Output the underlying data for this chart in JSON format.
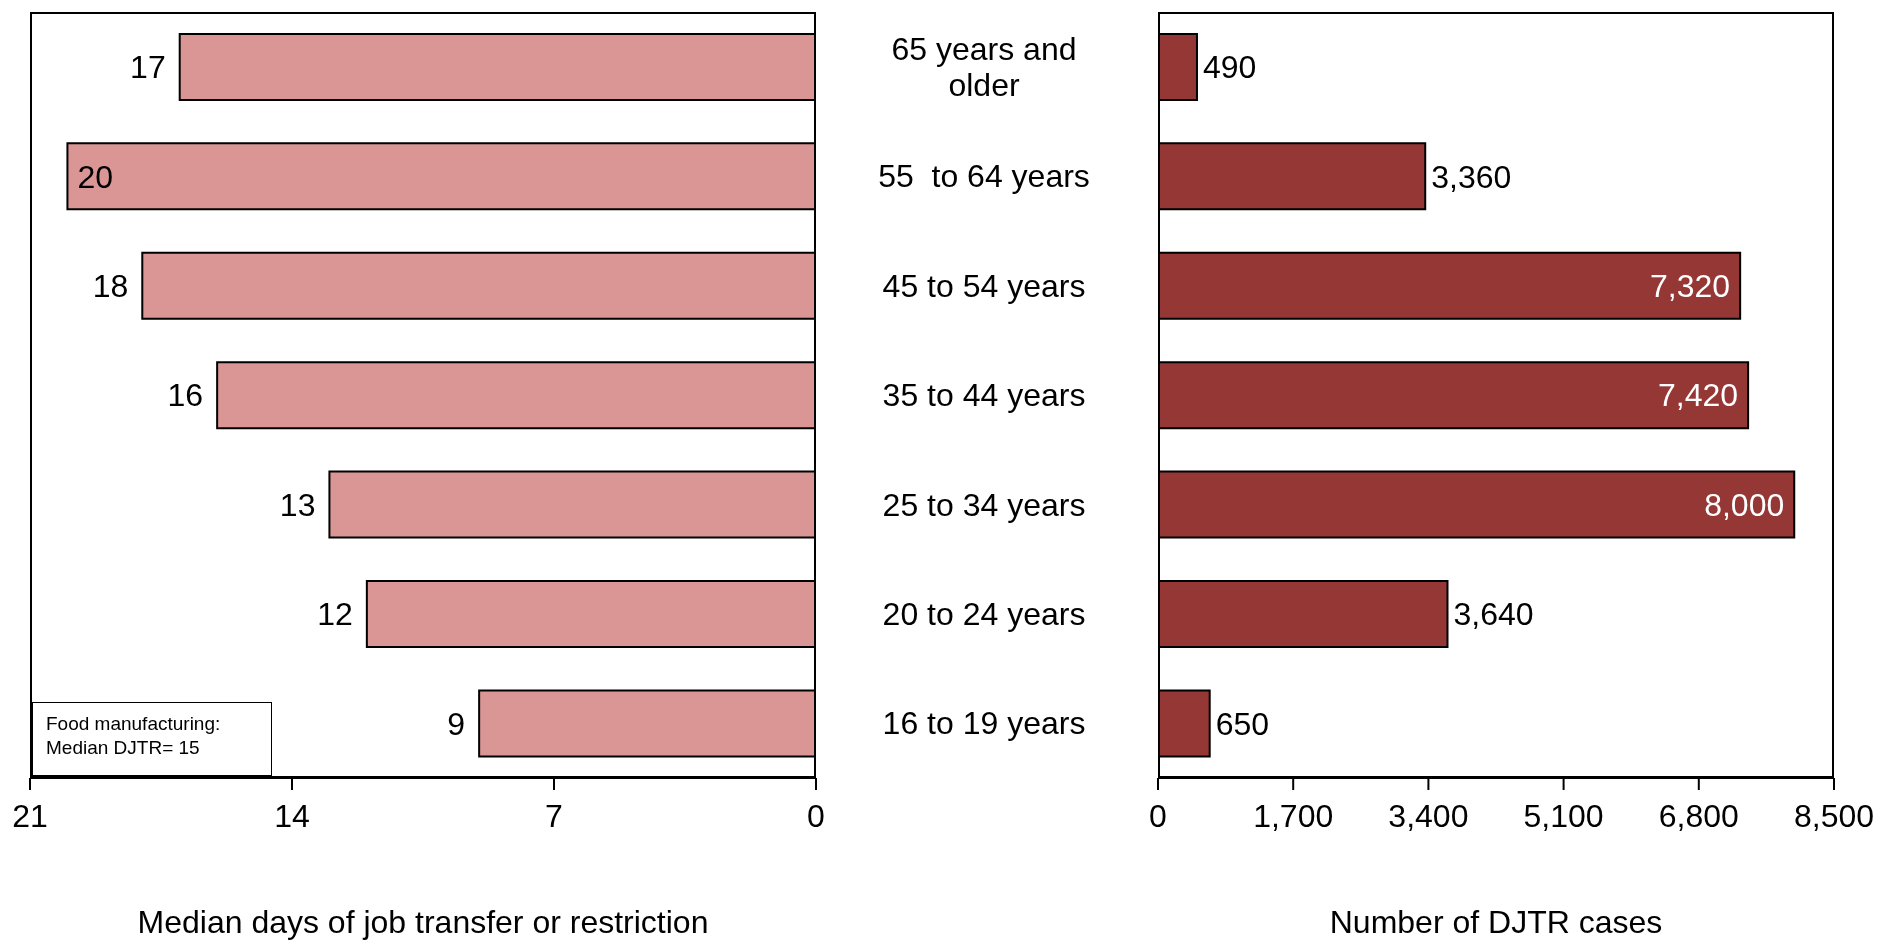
{
  "chart_data": [
    {
      "type": "bar",
      "orientation": "horizontal",
      "categories": [
        "65 years and older",
        "55  to 64 years",
        "45 to 54 years",
        "35 to 44 years",
        "25 to 34 years",
        "20 to 24 years",
        "16 to 19 years"
      ],
      "values": [
        17,
        20,
        18,
        16,
        13,
        12,
        9
      ],
      "color": "#d99694",
      "xlim": [
        21,
        0
      ],
      "xticks": [
        21,
        14,
        7,
        0
      ],
      "xlabel": "Median days of job transfer or restriction",
      "data_labels": true,
      "tick_labels": "x",
      "grid": false,
      "legend": false,
      "annotations": [
        "Food manufacturing: Median DJTR= 15"
      ]
    },
    {
      "type": "bar",
      "orientation": "horizontal",
      "categories": [
        "65 years and older",
        "55  to 64 years",
        "45 to 54 years",
        "35 to 44 years",
        "25 to 34 years",
        "20 to 24 years",
        "16 to 19 years"
      ],
      "values": [
        490,
        3360,
        7320,
        7420,
        8000,
        3640,
        650
      ],
      "value_labels": [
        "490",
        "3,360",
        "7,320",
        "7,420",
        "8,000",
        "3,640",
        "650"
      ],
      "color": "#953735",
      "xlim": [
        0,
        8500
      ],
      "xticks": [
        0,
        {
          "value": 1700,
          "label": "1,700"
        },
        {
          "value": 3400,
          "label": "3,400"
        },
        {
          "value": 5100,
          "label": "5,100"
        },
        {
          "value": 6800,
          "label": "6,800"
        },
        {
          "value": 8500,
          "label": "8,500"
        }
      ],
      "xlabel": "Number of DJTR cases",
      "grid": false,
      "legend": false
    }
  ]
}
